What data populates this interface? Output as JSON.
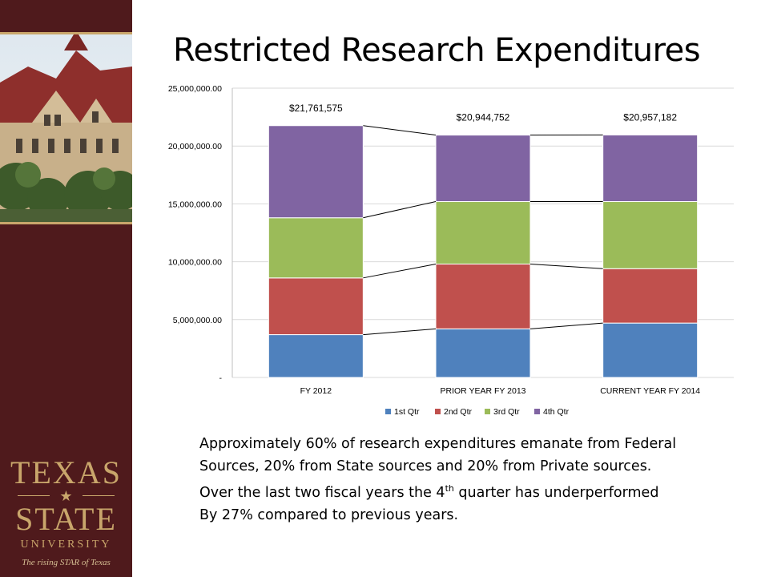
{
  "slide": {
    "title": "Restricted Research Expenditures",
    "body_lines": [
      "Approximately 60% of research expenditures emanate from Federal",
      "Sources, 20% from State sources and 20% from Private sources.",
      "Over the last two fiscal years the 4",
      "th",
      " quarter has underperformed",
      "By 27% compared to previous years."
    ]
  },
  "logo": {
    "line1": "TEXAS",
    "line2": "STATE",
    "line3": "UNIVERSITY",
    "tagline": "The rising STAR of Texas"
  },
  "colors": {
    "sidebar": "#4f1a1c",
    "gold": "#c9a66b",
    "q1": "#4f81bd",
    "q2": "#c0504d",
    "q3": "#9bbb59",
    "q4": "#8064a2"
  },
  "chart_data": {
    "type": "bar",
    "stacked": true,
    "categories": [
      "FY 2012",
      "PRIOR YEAR FY 2013",
      "CURRENT YEAR FY 2014"
    ],
    "series": [
      {
        "name": "1st Qtr",
        "values": [
          3700000,
          4200000,
          4700000
        ]
      },
      {
        "name": "2nd Qtr",
        "values": [
          4900000,
          5600000,
          4700000
        ]
      },
      {
        "name": "3rd Qtr",
        "values": [
          5200000,
          5400000,
          5800000
        ]
      },
      {
        "name": "4th Qtr",
        "values": [
          7961575,
          5744752,
          5757182
        ]
      }
    ],
    "totals_labels": [
      "$21,761,575",
      "$20,944,752",
      "$20,957,182"
    ],
    "ylim": [
      0,
      25000000
    ],
    "yticks": [
      0,
      5000000,
      10000000,
      15000000,
      20000000,
      25000000
    ],
    "ytick_labels": [
      "-",
      "5,000,000.00",
      "10,000,000.00",
      "15,000,000.00",
      "20,000,000.00",
      "25,000,000.00"
    ],
    "grid": true,
    "legend": "bottom",
    "series_lines": true
  }
}
